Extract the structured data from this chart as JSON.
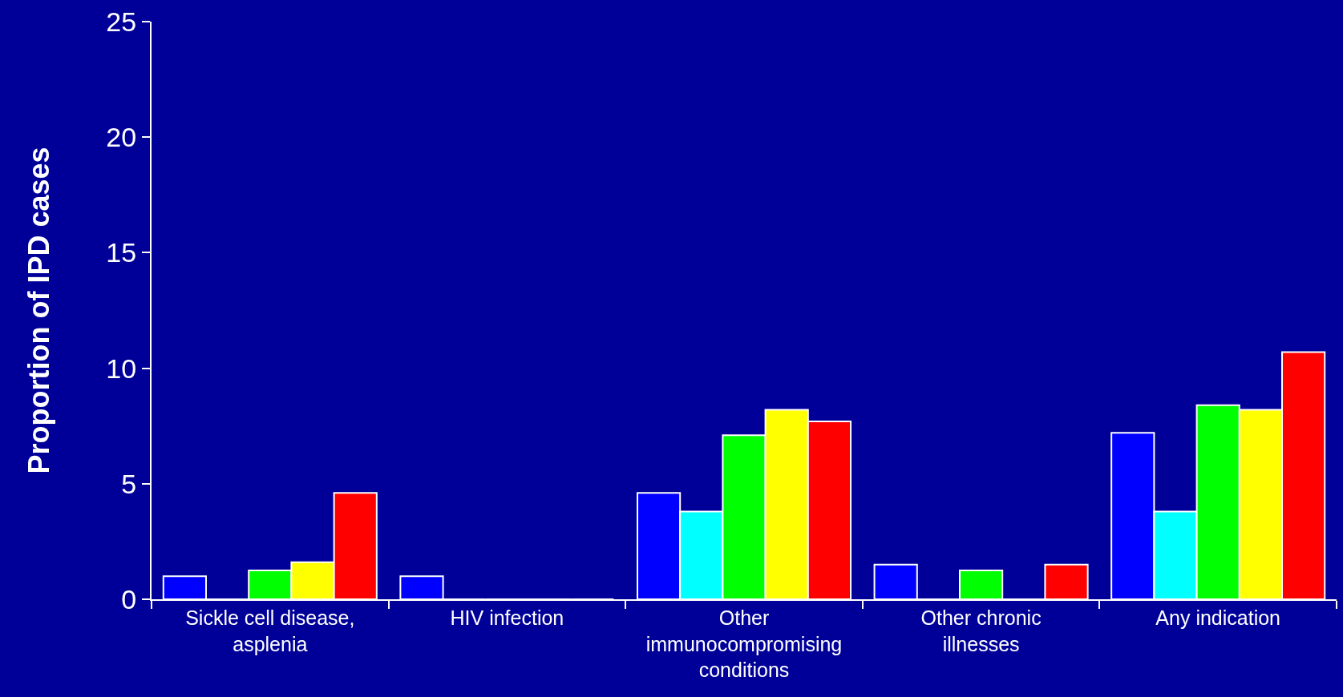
{
  "chart_data": {
    "type": "bar",
    "ylabel": "Proportion of IPD cases",
    "categories": [
      "Sickle cell disease, asplenia",
      "HIV infection",
      "Other immunocompromising conditions",
      "Other chronic illnesses",
      "Any indication"
    ],
    "series": [
      {
        "color": "#0000ff",
        "values": [
          1.0,
          1.0,
          4.6,
          1.5,
          7.2
        ]
      },
      {
        "color": "#00ffff",
        "values": [
          0,
          0,
          3.8,
          0,
          3.8
        ]
      },
      {
        "color": "#00ff00",
        "values": [
          1.25,
          0,
          7.1,
          1.25,
          8.4
        ]
      },
      {
        "color": "#ffff00",
        "values": [
          1.6,
          0,
          8.2,
          0,
          8.2
        ]
      },
      {
        "color": "#ff0000",
        "values": [
          4.6,
          0,
          7.7,
          1.5,
          10.7
        ]
      }
    ],
    "ylim": [
      0,
      25
    ],
    "yticks": [
      0,
      5,
      10,
      15,
      20,
      25
    ],
    "grid": false
  }
}
